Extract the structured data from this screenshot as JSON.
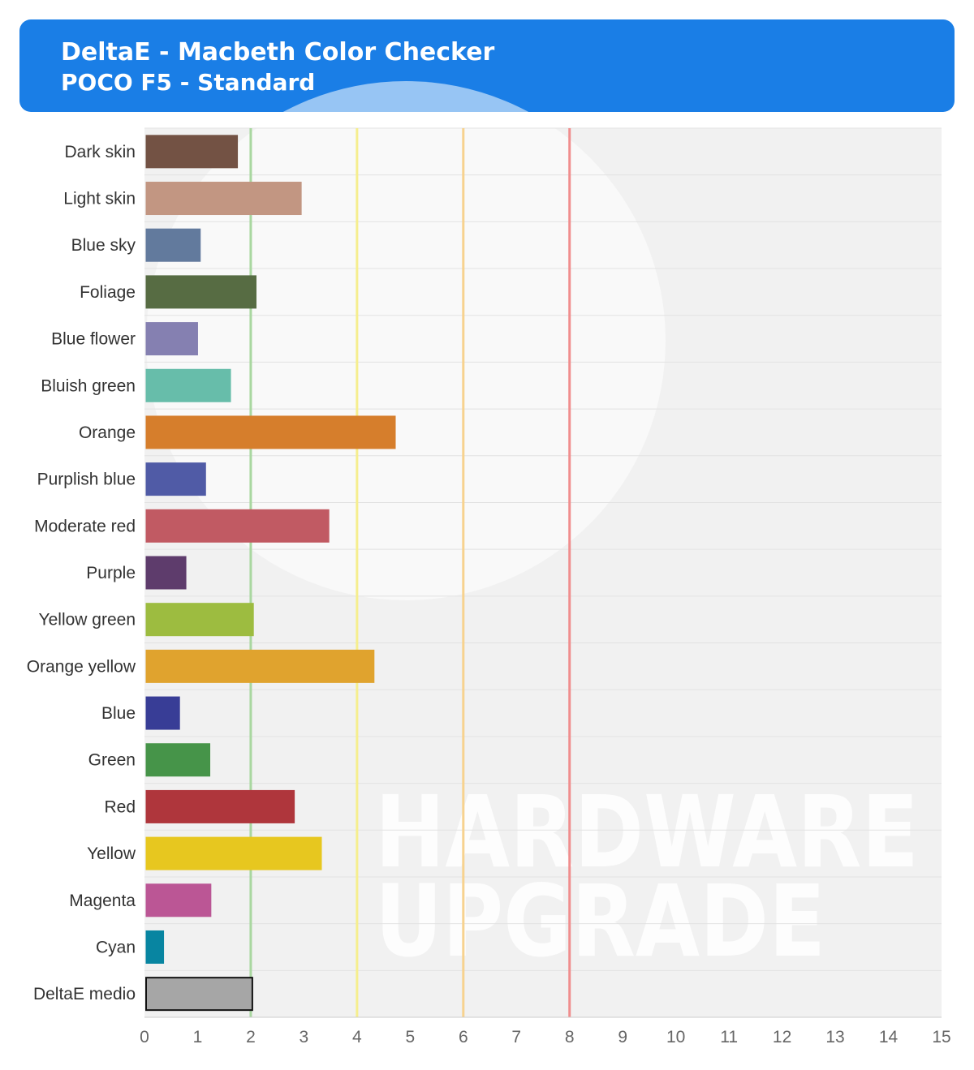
{
  "header": {
    "title": "DeltaE - Macbeth Color Checker",
    "subtitle": "POCO F5 - Standard"
  },
  "watermark": {
    "line1": "HARDWARE",
    "line2": "UPGRADE"
  },
  "colors": {
    "header_bg": "#1a7ee6",
    "plot_bg": "#f1f1f1",
    "ref_green": "#a9d7a0",
    "ref_yellow": "#f6ee8e",
    "ref_orange": "#f7d28f",
    "ref_red": "#f08e8e"
  },
  "chart_data": {
    "type": "bar",
    "orientation": "horizontal",
    "title": "DeltaE - Macbeth Color Checker",
    "subtitle": "POCO F5 - Standard",
    "xlim": [
      0,
      15
    ],
    "xticks": [
      0,
      1,
      2,
      3,
      4,
      5,
      6,
      7,
      8,
      9,
      10,
      11,
      12,
      13,
      14,
      15
    ],
    "categories": [
      "Dark skin",
      "Light skin",
      "Blue sky",
      "Foliage",
      "Blue flower",
      "Bluish green",
      "Orange",
      "Purplish blue",
      "Moderate red",
      "Purple",
      "Yellow green",
      "Orange yellow",
      "Blue",
      "Green",
      "Red",
      "Yellow",
      "Magenta",
      "Cyan",
      "DeltaE medio"
    ],
    "values": [
      1.75,
      2.95,
      1.05,
      2.1,
      1.0,
      1.62,
      4.72,
      1.15,
      3.47,
      0.78,
      2.05,
      4.32,
      0.66,
      1.23,
      2.82,
      3.33,
      1.25,
      0.36,
      2.03
    ],
    "bar_colors": [
      "#735244",
      "#c29682",
      "#627a9d",
      "#576c43",
      "#8580b1",
      "#67bdaa",
      "#d67e2c",
      "#505ba6",
      "#c15a63",
      "#5e3c6c",
      "#9dbc40",
      "#e0a32e",
      "#383d96",
      "#469449",
      "#af363c",
      "#e7c71f",
      "#bb5695",
      "#0885a1",
      "#a6a6a6"
    ],
    "reference_lines": [
      {
        "x": 2,
        "color": "#a9d7a0"
      },
      {
        "x": 4,
        "color": "#f6ee8e"
      },
      {
        "x": 6,
        "color": "#f7d28f"
      },
      {
        "x": 8,
        "color": "#f08e8e"
      }
    ],
    "grid": true,
    "legend": "none"
  }
}
